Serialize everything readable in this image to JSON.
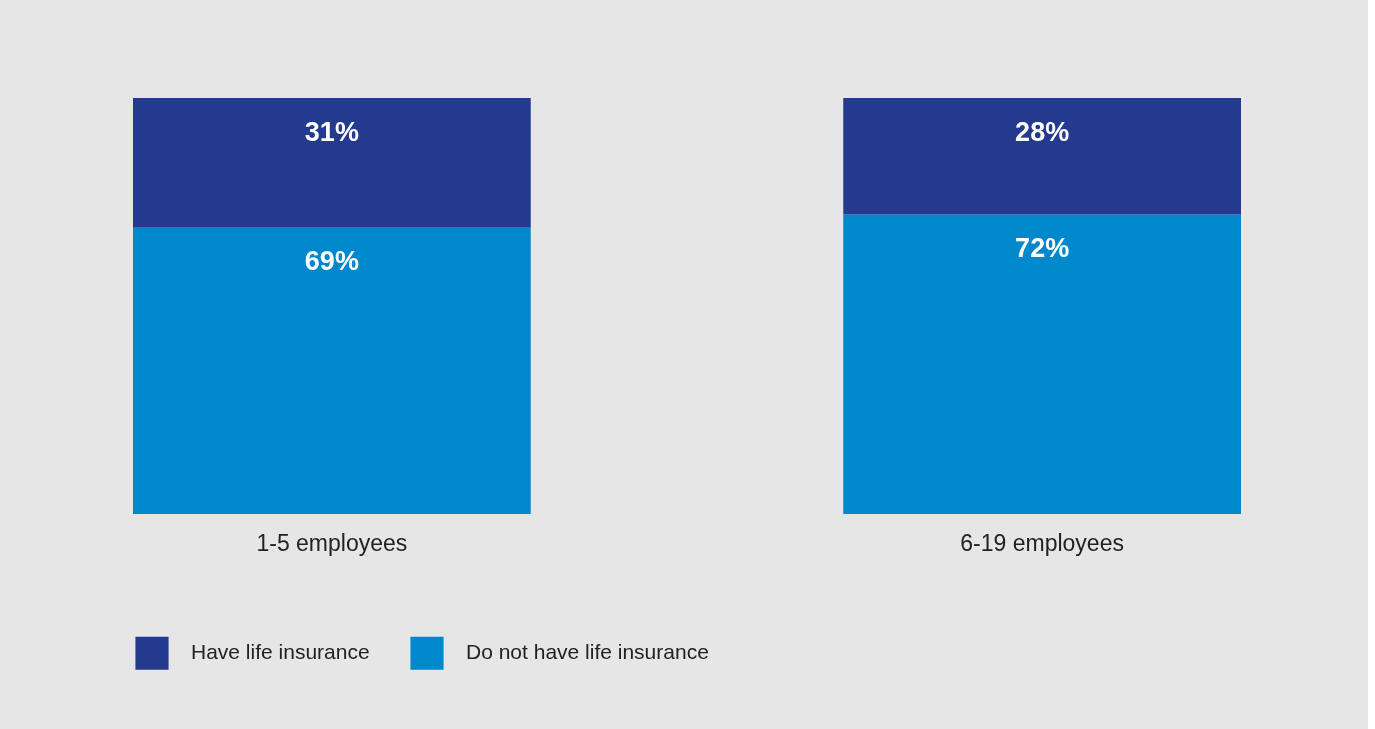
{
  "chart_data": {
    "type": "bar",
    "stacked": true,
    "legend": "bottom left",
    "categories": [
      "1-5 employees",
      "6-19 employees"
    ],
    "series": [
      {
        "name": "Do not have life insurance",
        "color": "#0088cc",
        "values": [
          69,
          72
        ],
        "value_labels": [
          "69%",
          "72%"
        ]
      },
      {
        "name": "Have life insurance",
        "color": "#233a8f",
        "values": [
          31,
          28
        ],
        "value_labels": [
          "31%",
          "28%"
        ]
      }
    ]
  }
}
